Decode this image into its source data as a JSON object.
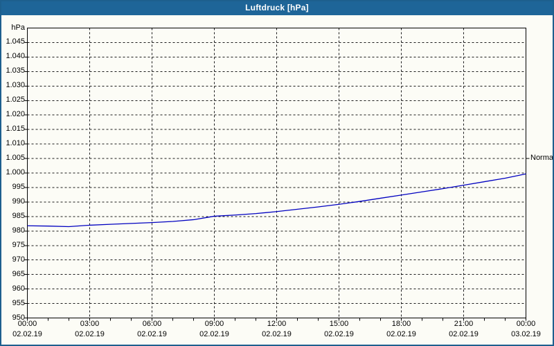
{
  "window": {
    "title": "Luftdruck [hPa]",
    "titlebar_color": "#1e6598",
    "border_color": "#1d5f8e",
    "background": "#fcfcf6"
  },
  "chart_data": {
    "type": "line",
    "title": "Luftdruck [hPa]",
    "ylabel": "hPa",
    "xlabel": "",
    "ylim": [
      950,
      1050
    ],
    "ytick_step": 5,
    "ytick_labels": [
      "950",
      "955",
      "960",
      "965",
      "970",
      "975",
      "980",
      "985",
      "990",
      "995",
      "1.000",
      "1.005",
      "1.010",
      "1.015",
      "1.020",
      "1.025",
      "1.030",
      "1.035",
      "1.040",
      "1.045"
    ],
    "grid": true,
    "legend_position": "none",
    "line_color": "#0000c0",
    "grid_color": "#1a1a1a",
    "frame_color": "#000000",
    "series": [
      {
        "name": "Luftdruck",
        "x_hours": [
          0,
          1,
          2,
          3,
          4,
          5,
          6,
          7,
          8,
          9,
          10,
          11,
          12,
          13,
          14,
          15,
          16,
          17,
          18,
          19,
          20,
          21,
          22,
          23,
          24
        ],
        "values": [
          981.8,
          981.7,
          981.5,
          982.0,
          982.3,
          982.6,
          982.9,
          983.3,
          983.9,
          985.1,
          985.5,
          986.0,
          986.7,
          987.5,
          988.3,
          989.2,
          990.2,
          991.3,
          992.4,
          993.5,
          994.6,
          995.8,
          997.0,
          998.2,
          999.7
        ]
      }
    ],
    "x_total_hours": 24,
    "xticks": [
      {
        "hour": 0,
        "time": "00:00",
        "date": "02.02.19"
      },
      {
        "hour": 3,
        "time": "03:00",
        "date": "02.02.19"
      },
      {
        "hour": 6,
        "time": "06:00",
        "date": "02.02.19"
      },
      {
        "hour": 9,
        "time": "09:00",
        "date": "02.02.19"
      },
      {
        "hour": 12,
        "time": "12:00",
        "date": "02.02.19"
      },
      {
        "hour": 15,
        "time": "15:00",
        "date": "02.02.19"
      },
      {
        "hour": 18,
        "time": "18:00",
        "date": "02.02.19"
      },
      {
        "hour": 21,
        "time": "21:00",
        "date": "02.02.19"
      },
      {
        "hour": 24,
        "time": "00:00",
        "date": "03.02.19"
      }
    ],
    "minor_xtick_every_hours": 1,
    "annotation": {
      "label": "Normal",
      "value": 1005
    }
  }
}
